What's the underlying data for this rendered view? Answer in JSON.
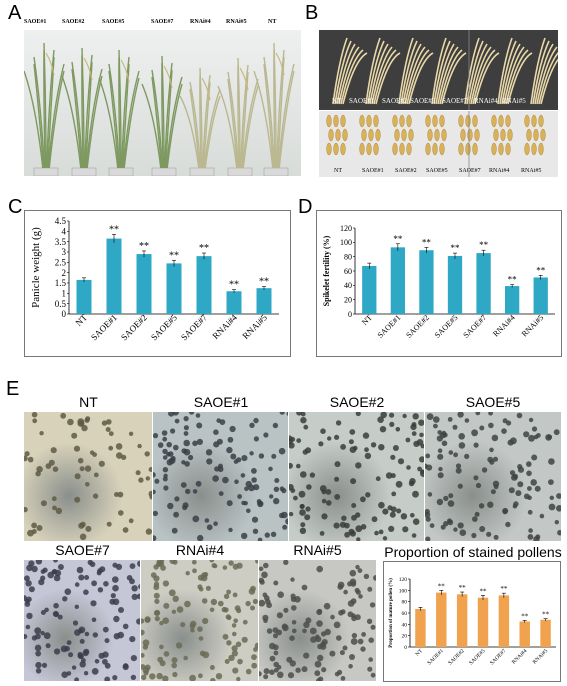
{
  "panels": {
    "a": "A",
    "b": "B",
    "c": "C",
    "d": "D",
    "e": "E"
  },
  "panel_a_labels": [
    "SAOE#1",
    "SAOE#2",
    "SAOE#5",
    "SAOE#7",
    "RNAi#4",
    "RNAi#5",
    "NT"
  ],
  "panel_b_top_labels": [
    "NT",
    "SAOE#1",
    "SAOE#2",
    "SAOE#5",
    "SAOE#7",
    "RNAi#4",
    "RNAi#5"
  ],
  "panel_b_bottom_labels": [
    "NT",
    "SAOE#1",
    "SAOE#2",
    "SAOE#5",
    "SAOE#7",
    "RNAi#4",
    "RNAi#5"
  ],
  "pollen_titles": [
    "NT",
    "SAOE#1",
    "SAOE#2",
    "SAOE#5",
    "SAOE#7",
    "RNAi#4",
    "RNAi#5"
  ],
  "pollen_chart_title": "Proportion of stained pollens",
  "colors": {
    "teal": "#2fa8c6",
    "orange": "#f0a24e",
    "photo_bg": "#c9d4cf"
  },
  "chart_data": [
    {
      "type": "bar",
      "categories": [
        "NT",
        "SAOE#1",
        "SAOE#2",
        "SAOE#5",
        "SAOE#7",
        "RNAi#4",
        "RNAi#5"
      ],
      "values": [
        1.65,
        3.65,
        2.9,
        2.45,
        2.8,
        1.1,
        1.25
      ],
      "errors": [
        0.1,
        0.2,
        0.15,
        0.15,
        0.15,
        0.08,
        0.08
      ],
      "annotations": [
        "",
        "**",
        "**",
        "**",
        "**",
        "**",
        "**"
      ],
      "ylabel": "Panicle weight (g)",
      "ylim": [
        0,
        4.5
      ],
      "yticks": [
        "0",
        "0.5",
        "1",
        "1.5",
        "2",
        "2.5",
        "3",
        "3.5",
        "4",
        "4.5"
      ]
    },
    {
      "type": "bar",
      "categories": [
        "NT",
        "SAOE#1",
        "SAOE#2",
        "SAOE#5",
        "SAOE#7",
        "RNAi#4",
        "RNAi#5"
      ],
      "values": [
        67,
        93,
        89,
        81,
        85,
        39,
        51
      ],
      "errors": [
        4,
        5,
        4,
        4,
        4,
        2,
        3
      ],
      "annotations": [
        "",
        "**",
        "**",
        "**",
        "**",
        "**",
        "**"
      ],
      "ylabel": "Spikelet fertility (%)",
      "ylim": [
        0,
        120
      ],
      "yticks": [
        "0",
        "20",
        "40",
        "60",
        "80",
        "100",
        "120"
      ]
    },
    {
      "type": "bar",
      "categories": [
        "NT",
        "SAOE#1",
        "SAOE#2",
        "SAOE#5",
        "SAOE#7",
        "RNAi#4",
        "RNAi#5"
      ],
      "values": [
        67,
        96,
        93,
        87,
        91,
        45,
        48
      ],
      "errors": [
        3,
        4,
        4,
        4,
        4,
        2,
        2
      ],
      "annotations": [
        "",
        "**",
        "**",
        "**",
        "**",
        "**",
        "**"
      ],
      "ylabel": "Proportion of mature pollen (%)",
      "ylim": [
        0,
        120
      ],
      "yticks": [
        "0",
        "20",
        "40",
        "60",
        "80",
        "100",
        "120"
      ]
    }
  ]
}
